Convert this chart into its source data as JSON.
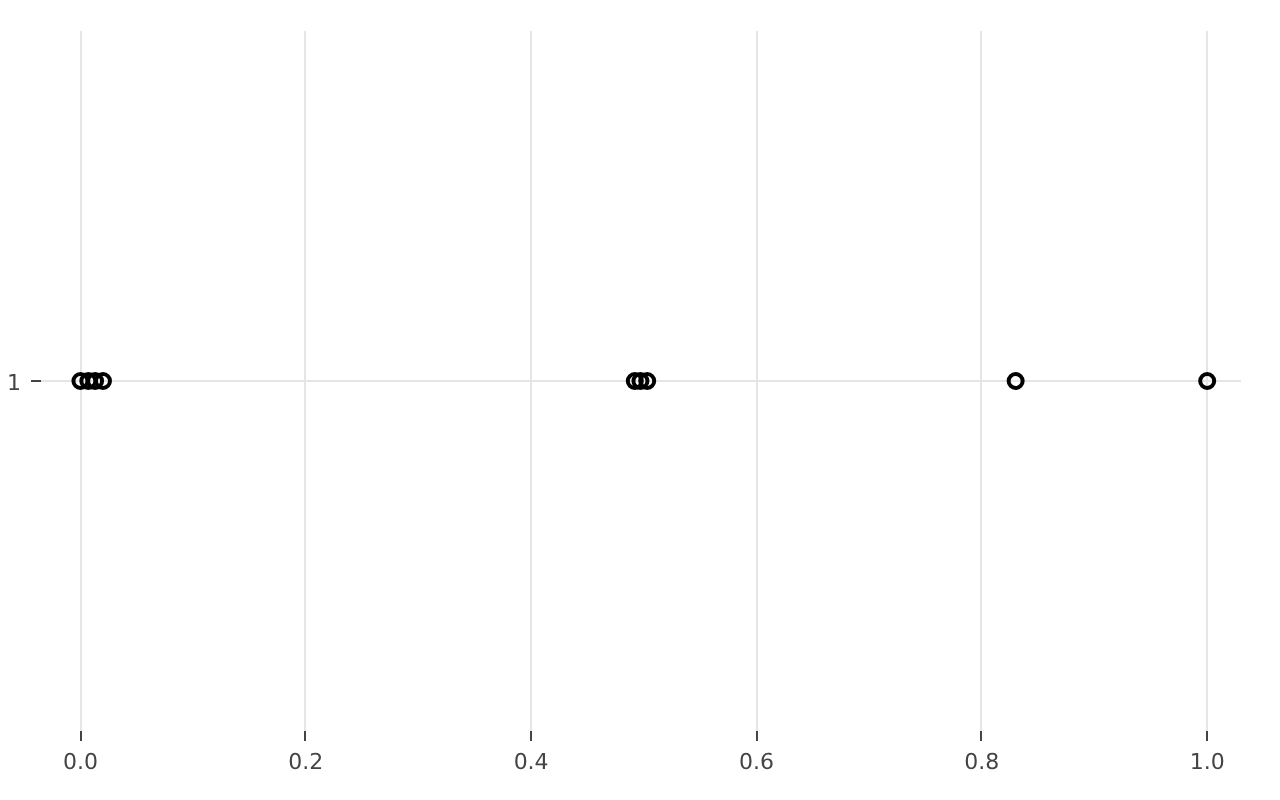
{
  "chart_data": {
    "type": "scatter",
    "orientation": "horizontal",
    "categories": [
      "1"
    ],
    "series": [
      {
        "x": [
          "1",
          "1",
          "1",
          "1",
          "1",
          "1",
          "1",
          "1",
          "1"
        ],
        "values": [
          0.0,
          0.007,
          0.013,
          0.02,
          0.492,
          0.497,
          0.503,
          0.83,
          1.0
        ],
        "color": "#000000"
      }
    ],
    "marker": "circle",
    "xlim": [
      -0.035,
      1.03
    ],
    "xticks": [
      {
        "value": 0,
        "label": "0.0"
      },
      {
        "value": 0.2,
        "label": "0.2"
      },
      {
        "value": 0.4,
        "label": "0.4"
      },
      {
        "value": 0.6,
        "label": "0.6"
      },
      {
        "value": 0.8,
        "label": "0.8"
      },
      {
        "value": 1,
        "label": "1.0"
      }
    ],
    "grid": true
  }
}
